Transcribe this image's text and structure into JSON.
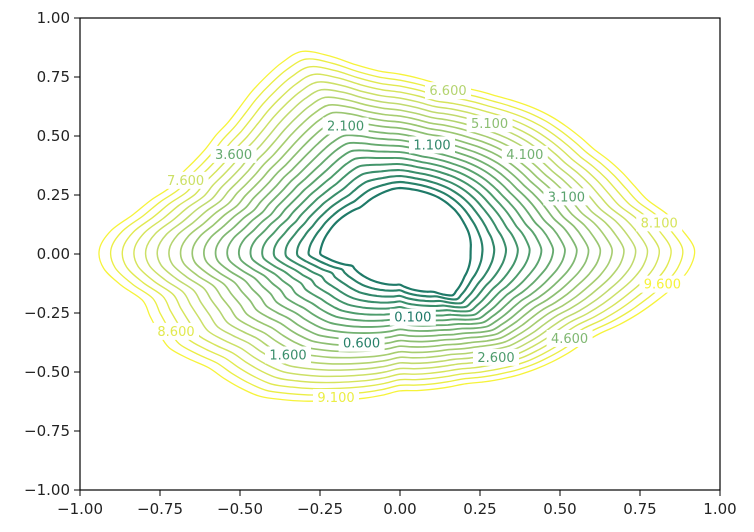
{
  "chart_data": {
    "type": "contour",
    "title": "",
    "xlabel": "",
    "ylabel": "",
    "xlim": [
      -1.0,
      1.0
    ],
    "ylim": [
      -1.0,
      1.0
    ],
    "grid": false,
    "x_ticks": [
      -1.0,
      -0.75,
      -0.5,
      -0.25,
      0.0,
      0.25,
      0.5,
      0.75,
      1.0
    ],
    "x_tick_labels": [
      "−1.00",
      "−0.75",
      "−0.50",
      "−0.25",
      "0.00",
      "0.25",
      "0.50",
      "0.75",
      "1.00"
    ],
    "y_ticks": [
      1.0,
      0.75,
      0.5,
      0.25,
      0.0,
      -0.25,
      -0.5,
      -0.75,
      -1.0
    ],
    "y_tick_labels": [
      "1.00",
      "0.75",
      "0.50",
      "0.25",
      "0.00",
      "−0.25",
      "−0.50",
      "−0.75",
      "−1.00"
    ],
    "level_start": 0.1,
    "level_step": 0.5,
    "level_count": 20,
    "colormap": [
      "#1f7a68",
      "#4a9a6c",
      "#86bc73",
      "#c4dc6e",
      "#f6f33a"
    ],
    "outer_boundary": [
      [
        -0.95,
        -0.02
      ],
      [
        -0.92,
        0.08
      ],
      [
        -0.84,
        0.16
      ],
      [
        -0.72,
        0.28
      ],
      [
        -0.62,
        0.42
      ],
      [
        -0.52,
        0.58
      ],
      [
        -0.42,
        0.75
      ],
      [
        -0.32,
        0.86
      ],
      [
        -0.25,
        0.85
      ],
      [
        -0.1,
        0.78
      ],
      [
        0.12,
        0.72
      ],
      [
        0.3,
        0.67
      ],
      [
        0.45,
        0.6
      ],
      [
        0.6,
        0.45
      ],
      [
        0.76,
        0.24
      ],
      [
        0.86,
        0.14
      ],
      [
        0.92,
        0.02
      ],
      [
        0.9,
        -0.08
      ],
      [
        0.8,
        -0.2
      ],
      [
        0.6,
        -0.35
      ],
      [
        0.4,
        -0.5
      ],
      [
        0.2,
        -0.55
      ],
      [
        0.0,
        -0.58
      ],
      [
        -0.2,
        -0.62
      ],
      [
        -0.45,
        -0.6
      ],
      [
        -0.6,
        -0.48
      ],
      [
        -0.72,
        -0.4
      ],
      [
        -0.8,
        -0.2
      ],
      [
        -0.9,
        -0.1
      ]
    ],
    "inner_boundary": [
      [
        -0.25,
        0.0
      ],
      [
        -0.22,
        0.1
      ],
      [
        -0.12,
        0.2
      ],
      [
        -0.01,
        0.28
      ],
      [
        0.12,
        0.24
      ],
      [
        0.2,
        0.13
      ],
      [
        0.22,
        0.01
      ],
      [
        0.2,
        -0.1
      ],
      [
        0.16,
        -0.18
      ],
      [
        0.11,
        -0.16
      ],
      [
        0.0,
        -0.13
      ],
      [
        -0.15,
        -0.05
      ]
    ],
    "contour_labels": [
      {
        "text": "0.100",
        "x": 0.04,
        "y": -0.27,
        "level": 0
      },
      {
        "text": "0.600",
        "x": -0.12,
        "y": -0.38,
        "level": 1
      },
      {
        "text": "1.100",
        "x": 0.1,
        "y": 0.46,
        "level": 2
      },
      {
        "text": "1.600",
        "x": -0.35,
        "y": -0.43,
        "level": 3
      },
      {
        "text": "2.100",
        "x": -0.17,
        "y": 0.54,
        "level": 4
      },
      {
        "text": "2.600",
        "x": 0.3,
        "y": -0.44,
        "level": 5
      },
      {
        "text": "3.100",
        "x": 0.52,
        "y": 0.24,
        "level": 6
      },
      {
        "text": "3.600",
        "x": -0.52,
        "y": 0.42,
        "level": 7
      },
      {
        "text": "4.100",
        "x": 0.39,
        "y": 0.42,
        "level": 8
      },
      {
        "text": "4.600",
        "x": 0.53,
        "y": -0.36,
        "level": 9
      },
      {
        "text": "5.100",
        "x": 0.28,
        "y": 0.55,
        "level": 10
      },
      {
        "text": "6.600",
        "x": 0.15,
        "y": 0.69,
        "level": 13
      },
      {
        "text": "7.600",
        "x": -0.67,
        "y": 0.31,
        "level": 15
      },
      {
        "text": "8.100",
        "x": 0.81,
        "y": 0.13,
        "level": 16
      },
      {
        "text": "8.600",
        "x": -0.7,
        "y": -0.33,
        "level": 17
      },
      {
        "text": "9.100",
        "x": -0.2,
        "y": -0.61,
        "level": 18
      },
      {
        "text": "9.600",
        "x": 0.82,
        "y": -0.13,
        "level": 19
      }
    ]
  }
}
